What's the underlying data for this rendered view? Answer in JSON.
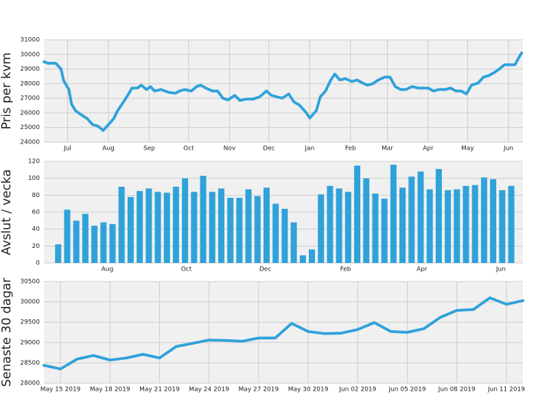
{
  "chart_data": [
    {
      "type": "line",
      "ylabel": "Pris per kvm",
      "color": "#30a2da",
      "grid": "both",
      "x": [
        0,
        3,
        9,
        13,
        15,
        19,
        21,
        24,
        28,
        33,
        37,
        41,
        45,
        49,
        53,
        56,
        59,
        63,
        67,
        71,
        74,
        78,
        81,
        84,
        89,
        92,
        95,
        100,
        103,
        107,
        112,
        116,
        119,
        123,
        128,
        132,
        136,
        140,
        145,
        149,
        154,
        159,
        164,
        169,
        173,
        177,
        181,
        186,
        190,
        194,
        199,
        202,
        207,
        210,
        214,
        218,
        221,
        225,
        229,
        234,
        238,
        242,
        246,
        250,
        254,
        259,
        263,
        267,
        271,
        275,
        280,
        284,
        288,
        292,
        296,
        300,
        305,
        309,
        313,
        317,
        321,
        325,
        330,
        334,
        338,
        342,
        346,
        350,
        355,
        358,
        361,
        363
      ],
      "values": [
        29500,
        29400,
        29400,
        29000,
        28200,
        27600,
        26600,
        26150,
        25900,
        25600,
        25200,
        25100,
        24800,
        25200,
        25600,
        26150,
        26550,
        27100,
        27700,
        27700,
        27900,
        27600,
        27800,
        27500,
        27600,
        27500,
        27400,
        27350,
        27500,
        27600,
        27500,
        27800,
        27900,
        27700,
        27500,
        27500,
        27000,
        26900,
        27200,
        26850,
        26950,
        26950,
        27100,
        27500,
        27200,
        27100,
        27000,
        27300,
        26750,
        26550,
        26050,
        25650,
        26150,
        27100,
        27500,
        28250,
        28650,
        28250,
        28350,
        28150,
        28250,
        28050,
        27900,
        28000,
        28250,
        28450,
        28450,
        27800,
        27600,
        27600,
        27800,
        27700,
        27700,
        27700,
        27500,
        27600,
        27600,
        27700,
        27500,
        27500,
        27300,
        27900,
        28050,
        28450,
        28550,
        28750,
        29000,
        29300,
        29300,
        29300,
        29800,
        30100
      ],
      "xlim": [
        0,
        364
      ],
      "xticks": [
        {
          "value": 18,
          "label": "Jul"
        },
        {
          "value": 49,
          "label": "Aug"
        },
        {
          "value": 80,
          "label": "Sep"
        },
        {
          "value": 110,
          "label": "Oct"
        },
        {
          "value": 141,
          "label": "Nov"
        },
        {
          "value": 171,
          "label": "Dec"
        },
        {
          "value": 202,
          "label": "Jan"
        },
        {
          "value": 233,
          "label": "Feb"
        },
        {
          "value": 261,
          "label": "Mar"
        },
        {
          "value": 292,
          "label": "Apr"
        },
        {
          "value": 322,
          "label": "May"
        },
        {
          "value": 353,
          "label": "Jun"
        }
      ],
      "ylim": [
        24000,
        31000
      ],
      "yticks": [
        24000,
        25000,
        26000,
        27000,
        28000,
        29000,
        30000,
        31000
      ]
    },
    {
      "type": "bar",
      "ylabel": "Avslut / vecka",
      "color": "#30a2da",
      "grid": "y",
      "x": [
        11,
        18,
        25,
        32,
        39,
        46,
        53,
        60,
        67,
        74,
        81,
        88,
        95,
        102,
        109,
        116,
        123,
        130,
        137,
        144,
        151,
        158,
        165,
        172,
        179,
        186,
        193,
        200,
        207,
        214,
        221,
        228,
        235,
        242,
        249,
        256,
        263,
        270,
        277,
        284,
        291,
        298,
        305,
        312,
        319,
        326,
        333,
        340,
        347,
        354,
        361
      ],
      "values": [
        22,
        63,
        50,
        58,
        44,
        48,
        46,
        90,
        78,
        85,
        88,
        84,
        83,
        90,
        100,
        84,
        103,
        84,
        88,
        77,
        77,
        87,
        79,
        89,
        70,
        64,
        48,
        9,
        16,
        81,
        91,
        88,
        84,
        115,
        100,
        82,
        76,
        116,
        89,
        102,
        108,
        87,
        111,
        86,
        87,
        91,
        92,
        101,
        99,
        86,
        91
      ],
      "xlim": [
        0,
        370
      ],
      "xticks": [
        {
          "value": 49,
          "label": "Aug"
        },
        {
          "value": 110,
          "label": "Oct"
        },
        {
          "value": 171,
          "label": "Dec"
        },
        {
          "value": 233,
          "label": "Feb"
        },
        {
          "value": 292,
          "label": "Apr"
        },
        {
          "value": 353,
          "label": "Jun"
        }
      ],
      "ylim": [
        0,
        120
      ],
      "yticks": [
        0,
        20,
        40,
        60,
        80,
        100,
        120
      ]
    },
    {
      "type": "line",
      "ylabel": "Senaste 30 dagar",
      "color": "#30a2da",
      "grid": "both",
      "x": [
        "2019-05-14",
        "2019-05-15",
        "2019-05-16",
        "2019-05-17",
        "2019-05-18",
        "2019-05-19",
        "2019-05-20",
        "2019-05-21",
        "2019-05-22",
        "2019-05-23",
        "2019-05-24",
        "2019-05-25",
        "2019-05-26",
        "2019-05-27",
        "2019-05-28",
        "2019-05-29",
        "2019-05-30",
        "2019-05-31",
        "2019-06-01",
        "2019-06-02",
        "2019-06-03",
        "2019-06-04",
        "2019-06-05",
        "2019-06-06",
        "2019-06-07",
        "2019-06-08",
        "2019-06-09",
        "2019-06-10",
        "2019-06-11",
        "2019-06-12"
      ],
      "values": [
        28440,
        28350,
        28590,
        28680,
        28570,
        28620,
        28710,
        28620,
        28900,
        28980,
        29060,
        29050,
        29030,
        29110,
        29110,
        29470,
        29270,
        29220,
        29230,
        29320,
        29490,
        29270,
        29250,
        29340,
        29620,
        29790,
        29810,
        30100,
        29940,
        30030
      ],
      "xlim": [
        "2019-05-14",
        "2019-06-12"
      ],
      "xticks": [
        {
          "value": "2019-05-15",
          "label": "May 15 2019"
        },
        {
          "value": "2019-05-18",
          "label": "May 18 2019"
        },
        {
          "value": "2019-05-21",
          "label": "May 21 2019"
        },
        {
          "value": "2019-05-24",
          "label": "May 24 2019"
        },
        {
          "value": "2019-05-27",
          "label": "May 27 2019"
        },
        {
          "value": "2019-05-30",
          "label": "May 30 2019"
        },
        {
          "value": "2019-06-02",
          "label": "Jun 02 2019"
        },
        {
          "value": "2019-06-05",
          "label": "Jun 05 2019"
        },
        {
          "value": "2019-06-08",
          "label": "Jun 08 2019"
        },
        {
          "value": "2019-06-11",
          "label": "Jun 11 2019"
        }
      ],
      "ylim": [
        28000,
        30500
      ],
      "yticks": [
        28000,
        28500,
        29000,
        29500,
        30000,
        30500
      ]
    }
  ]
}
